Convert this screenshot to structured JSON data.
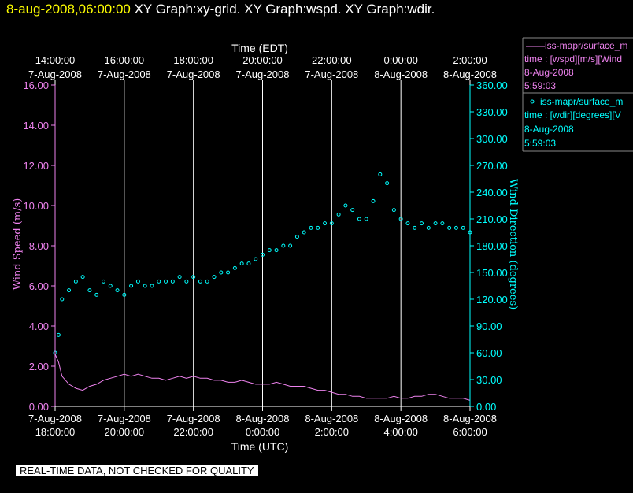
{
  "header": {
    "timestamp": "8-aug-2008,06:00:00",
    "graphs": "XY Graph:xy-grid.  XY Graph:wspd.  XY Graph:wdir."
  },
  "colors": {
    "speed": "#ee82ee",
    "direction": "#00ffff",
    "axis": "#ffffff",
    "timestamp": "#ffff00"
  },
  "legend": [
    {
      "name": "——iss-mapr/surface_m",
      "line2": "time : [wspd][m/s][Wind",
      "date": "8-Aug-2008",
      "time": "5:59:03",
      "color": "#ee82ee"
    },
    {
      "name": "iss-mapr/surface_m",
      "line2": "time : [wdir][degrees][V",
      "date": "8-Aug-2008",
      "time": "5:59:03",
      "color": "#00ffff"
    }
  ],
  "disclaimer": "REAL-TIME DATA, NOT CHECKED FOR QUALITY",
  "chart_data": {
    "type": "line",
    "title": "",
    "xlabel_top": "Time (EDT)",
    "xlabel_bottom": "Time (UTC)",
    "ylabel_left": "Wind Speed (m/s)",
    "ylabel_right": "Wind Direction (degrees)",
    "xlim_utc_hours": [
      18,
      30
    ],
    "ylim_left": [
      0,
      16
    ],
    "ylim_right": [
      0,
      360
    ],
    "grid": "vertical lines at 2-hour ticks",
    "x_ticks_bottom": [
      {
        "hour": 18,
        "l1": "7-Aug-2008",
        "l2": "18:00:00"
      },
      {
        "hour": 20,
        "l1": "7-Aug-2008",
        "l2": "20:00:00"
      },
      {
        "hour": 22,
        "l1": "7-Aug-2008",
        "l2": "22:00:00"
      },
      {
        "hour": 24,
        "l1": "8-Aug-2008",
        "l2": "0:00:00"
      },
      {
        "hour": 26,
        "l1": "8-Aug-2008",
        "l2": "2:00:00"
      },
      {
        "hour": 28,
        "l1": "8-Aug-2008",
        "l2": "4:00:00"
      },
      {
        "hour": 30,
        "l1": "8-Aug-2008",
        "l2": "6:00:00"
      }
    ],
    "x_ticks_top": [
      {
        "hour": 18,
        "l1": "14:00:00",
        "l2": "7-Aug-2008"
      },
      {
        "hour": 20,
        "l1": "16:00:00",
        "l2": "7-Aug-2008"
      },
      {
        "hour": 22,
        "l1": "18:00:00",
        "l2": "7-Aug-2008"
      },
      {
        "hour": 24,
        "l1": "20:00:00",
        "l2": "7-Aug-2008"
      },
      {
        "hour": 26,
        "l1": "22:00:00",
        "l2": "7-Aug-2008"
      },
      {
        "hour": 28,
        "l1": "0:00:00",
        "l2": "8-Aug-2008"
      },
      {
        "hour": 30,
        "l1": "2:00:00",
        "l2": "8-Aug-2008"
      }
    ],
    "y_ticks_left": [
      "0.00",
      "2.00",
      "4.00",
      "6.00",
      "8.00",
      "10.00",
      "12.00",
      "14.00",
      "16.00"
    ],
    "y_ticks_right": [
      "0.00",
      "30.00",
      "60.00",
      "90.00",
      "120.00",
      "150.00",
      "180.00",
      "210.00",
      "240.00",
      "270.00",
      "300.00",
      "330.00",
      "360.00"
    ],
    "series": [
      {
        "name": "iss-mapr/surface_m",
        "variable": "wspd",
        "axis": "left",
        "style": "line",
        "color": "#ee82ee",
        "x": [
          18.0,
          18.1,
          18.2,
          18.4,
          18.6,
          18.8,
          19.0,
          19.2,
          19.4,
          19.6,
          19.8,
          20.0,
          20.2,
          20.4,
          20.6,
          20.8,
          21.0,
          21.2,
          21.4,
          21.6,
          21.8,
          22.0,
          22.2,
          22.4,
          22.6,
          22.8,
          23.0,
          23.2,
          23.4,
          23.6,
          23.8,
          24.0,
          24.2,
          24.4,
          24.6,
          24.8,
          25.0,
          25.2,
          25.4,
          25.6,
          25.8,
          26.0,
          26.2,
          26.4,
          26.6,
          26.8,
          27.0,
          27.2,
          27.4,
          27.6,
          27.8,
          28.0,
          28.2,
          28.4,
          28.6,
          28.8,
          29.0,
          29.2,
          29.4,
          29.6,
          29.8,
          30.0
        ],
        "y": [
          2.6,
          2.2,
          1.5,
          1.1,
          0.9,
          0.8,
          1.0,
          1.1,
          1.3,
          1.4,
          1.5,
          1.6,
          1.5,
          1.6,
          1.5,
          1.4,
          1.4,
          1.3,
          1.4,
          1.5,
          1.4,
          1.5,
          1.4,
          1.4,
          1.3,
          1.3,
          1.2,
          1.2,
          1.3,
          1.2,
          1.1,
          1.1,
          1.1,
          1.2,
          1.1,
          1.0,
          1.0,
          1.0,
          0.9,
          0.8,
          0.8,
          0.7,
          0.6,
          0.6,
          0.5,
          0.5,
          0.4,
          0.4,
          0.4,
          0.4,
          0.5,
          0.4,
          0.4,
          0.5,
          0.5,
          0.6,
          0.6,
          0.5,
          0.4,
          0.4,
          0.4,
          0.3
        ]
      },
      {
        "name": "iss-mapr/surface_m",
        "variable": "wdir",
        "axis": "right",
        "style": "scatter",
        "color": "#00ffff",
        "x": [
          18.0,
          18.1,
          18.2,
          18.4,
          18.6,
          18.8,
          19.0,
          19.2,
          19.4,
          19.6,
          19.8,
          20.0,
          20.2,
          20.4,
          20.6,
          20.8,
          21.0,
          21.2,
          21.4,
          21.6,
          21.8,
          22.0,
          22.2,
          22.4,
          22.6,
          22.8,
          23.0,
          23.2,
          23.4,
          23.6,
          23.8,
          24.0,
          24.2,
          24.4,
          24.6,
          24.8,
          25.0,
          25.2,
          25.4,
          25.6,
          25.8,
          26.0,
          26.2,
          26.4,
          26.6,
          26.8,
          27.0,
          27.2,
          27.4,
          27.6,
          27.8,
          28.0,
          28.2,
          28.4,
          28.6,
          28.8,
          29.0,
          29.2,
          29.4,
          29.6,
          29.8,
          30.0
        ],
        "y": [
          60,
          80,
          120,
          130,
          140,
          145,
          130,
          125,
          140,
          135,
          130,
          125,
          135,
          140,
          135,
          135,
          140,
          140,
          140,
          145,
          140,
          145,
          140,
          140,
          145,
          150,
          150,
          155,
          160,
          160,
          165,
          170,
          175,
          175,
          180,
          180,
          190,
          195,
          200,
          200,
          205,
          205,
          215,
          225,
          220,
          210,
          210,
          230,
          260,
          250,
          220,
          210,
          205,
          200,
          205,
          200,
          205,
          205,
          200,
          200,
          200,
          195
        ]
      }
    ]
  }
}
